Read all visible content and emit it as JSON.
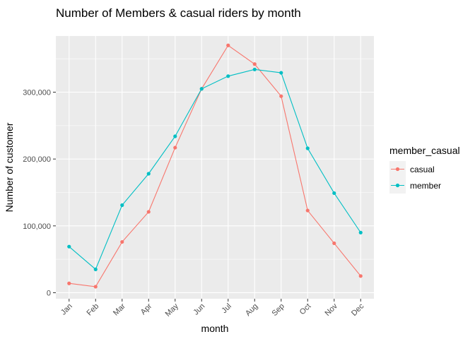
{
  "chart_data": {
    "type": "line",
    "title": "Number of Members & casual riders by month",
    "xlabel": "month",
    "ylabel": "Number of customer",
    "categories": [
      "Jan",
      "Feb",
      "Mar",
      "Apr",
      "May",
      "Jun",
      "Jul",
      "Aug",
      "Sep",
      "Oct",
      "Nov",
      "Dec"
    ],
    "yticks": [
      0,
      100000,
      200000,
      300000
    ],
    "ytick_labels": [
      "0",
      "100,000",
      "200,000",
      "300,000"
    ],
    "ylim": [
      -9000,
      384000
    ],
    "grid": true,
    "legend": {
      "title": "member_casual",
      "position": "right"
    },
    "series": [
      {
        "name": "casual",
        "color": "#F8766D",
        "values": [
          14000,
          9000,
          76000,
          121000,
          217000,
          305000,
          370000,
          342000,
          294000,
          123000,
          74000,
          25000
        ]
      },
      {
        "name": "member",
        "color": "#00BFC4",
        "values": [
          69000,
          35000,
          131000,
          178000,
          234000,
          305000,
          324000,
          334000,
          329000,
          216000,
          149000,
          90000
        ]
      }
    ]
  }
}
